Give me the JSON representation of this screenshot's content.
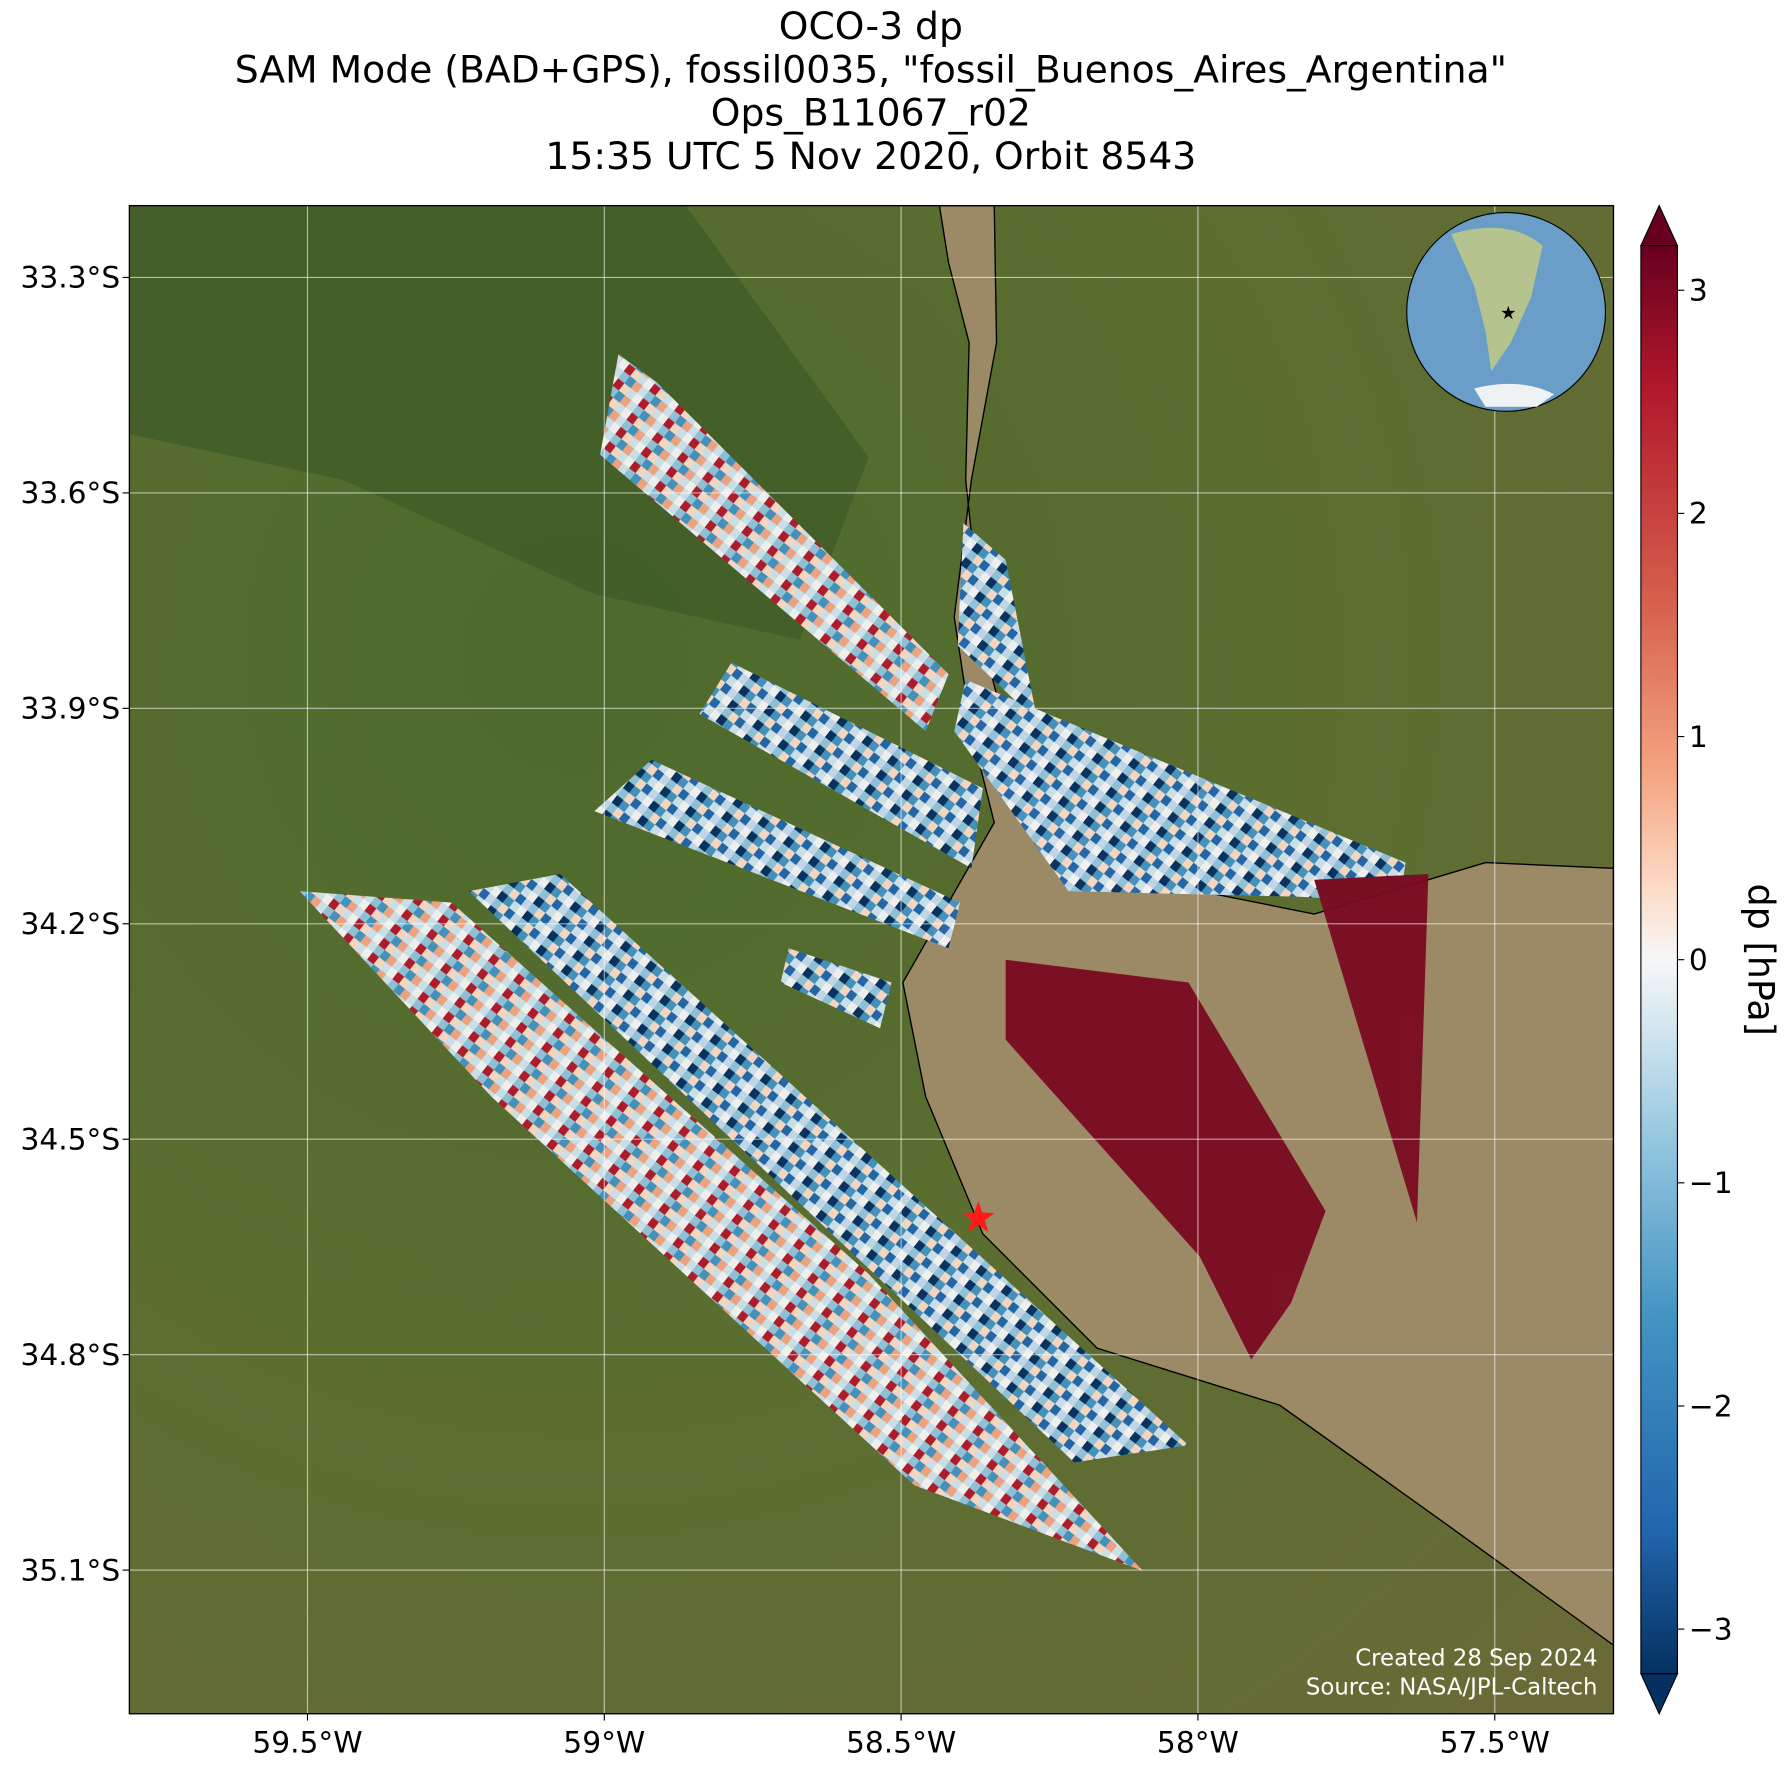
{
  "chart_data": {
    "type": "map",
    "title": [
      "OCO-3 dp",
      "SAM Mode (BAD+GPS), fossil0035, \"fossil_Buenos_Aires_Argentina\"",
      "Ops_B11067_r02",
      "15:35 UTC 5 Nov 2020, Orbit 8543"
    ],
    "xlim": [
      -59.8,
      -57.3
    ],
    "ylim": [
      -35.3,
      -33.2
    ],
    "xticks": [
      {
        "value": -59.5,
        "label": "59.5°W"
      },
      {
        "value": -59,
        "label": "59°W"
      },
      {
        "value": -58.5,
        "label": "58.5°W"
      },
      {
        "value": -58,
        "label": "58°W"
      },
      {
        "value": -57.5,
        "label": "57.5°W"
      }
    ],
    "yticks": [
      {
        "value": -33.3,
        "label": "33.3°S"
      },
      {
        "value": -33.6,
        "label": "33.6°S"
      },
      {
        "value": -33.9,
        "label": "33.9°S"
      },
      {
        "value": -34.2,
        "label": "34.2°S"
      },
      {
        "value": -34.5,
        "label": "34.5°S"
      },
      {
        "value": -34.8,
        "label": "34.8°S"
      },
      {
        "value": -35.1,
        "label": "35.1°S"
      }
    ],
    "grid": true,
    "site": {
      "lon": -58.37,
      "lat": -34.61,
      "color": "#ff1a1a"
    },
    "colorbar": {
      "label": "dp [hPa]",
      "clim": [
        -3.2,
        3.2
      ],
      "ticks": [
        {
          "value": -3,
          "label": "−3"
        },
        {
          "value": -2,
          "label": "−2"
        },
        {
          "value": -1,
          "label": "−1"
        },
        0,
        1,
        2,
        3
      ]
    },
    "credits": [
      "Created 28 Sep 2024",
      "Source: NASA/JPL-Caltech"
    ]
  }
}
